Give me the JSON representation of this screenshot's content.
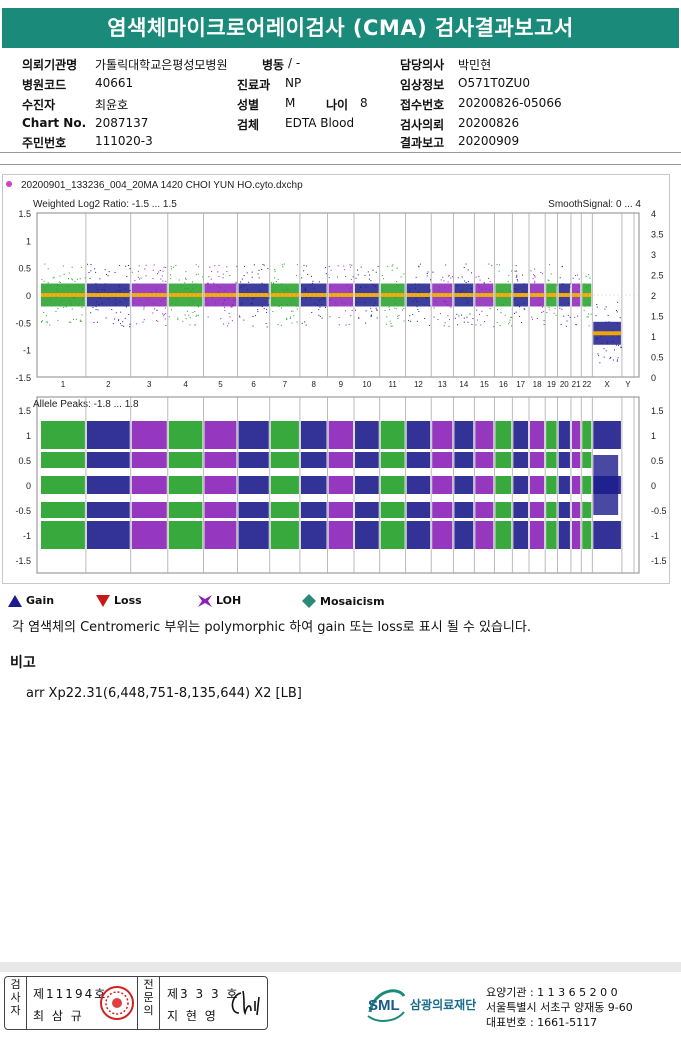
{
  "title": "염색체마이크로어레이검사 (CMA) 검사결과보고서",
  "patient": {
    "col1": [
      {
        "label": "의뢰기관명",
        "value": "가톨릭대학교은평성모병원"
      },
      {
        "label": "병원코드",
        "value": "40661"
      },
      {
        "label": "수진자",
        "value": "최윤호"
      },
      {
        "label": "Chart No.",
        "value": "2087137"
      },
      {
        "label": "주민번호",
        "value": "111020-3"
      }
    ],
    "ward": {
      "label": "병동",
      "value": "/ -"
    },
    "dept": {
      "label": "진료과",
      "value": "NP"
    },
    "sex": {
      "label": "성별",
      "value": "M"
    },
    "age": {
      "label": "나이",
      "value": "8"
    },
    "specimen": {
      "label": "검체",
      "value": "EDTA Blood"
    },
    "col3": [
      {
        "label": "담당의사",
        "value": "박민현"
      },
      {
        "label": "임상정보",
        "value": "O571T0ZU0"
      },
      {
        "label": "접수번호",
        "value": "20200826-05066"
      },
      {
        "label": "검사의뢰",
        "value": "20200826"
      },
      {
        "label": "결과보고",
        "value": "20200909"
      }
    ]
  },
  "chart_data": [
    {
      "type": "scatter",
      "file_title": "20200901_133236_004_20MA 1420 CHOI YUN HO.cyto.dxchp",
      "title": "Weighted Log2 Ratio: -1.5 ... 1.5",
      "right_title": "SmoothSignal: 0 ... 4",
      "ylim": [
        -1.5,
        1.5
      ],
      "yticks": [
        "1.5",
        "1",
        "0.5",
        "0",
        "-0.5",
        "-1",
        "-1.5"
      ],
      "y2lim": [
        0,
        4
      ],
      "y2ticks": [
        "4",
        "3.5",
        "3",
        "2.5",
        "2",
        "1.5",
        "1",
        "0.5",
        "0"
      ],
      "categories": [
        "1",
        "2",
        "3",
        "4",
        "5",
        "6",
        "7",
        "8",
        "9",
        "10",
        "11",
        "12",
        "13",
        "14",
        "15",
        "16",
        "17",
        "18",
        "19",
        "20",
        "21",
        "22",
        "X",
        "Y"
      ],
      "series_note_x_low": -0.7
    },
    {
      "type": "scatter",
      "title": "Allele Peaks: -1.8 ... 1.8",
      "ylim": [
        -1.8,
        1.8
      ],
      "yticks": [
        "1.5",
        "1",
        "0.5",
        "0",
        "-0.5",
        "-1",
        "-1.5"
      ],
      "peaks": [
        1,
        0.5,
        0,
        -0.5,
        -1
      ]
    }
  ],
  "chromosome_widths": [
    248,
    242,
    198,
    190,
    181,
    171,
    159,
    145,
    138,
    134,
    135,
    133,
    114,
    107,
    102,
    90,
    83,
    80,
    59,
    64,
    47,
    51,
    156,
    57
  ],
  "colors": {
    "green": "#22a028",
    "navy": "#1c1c8c",
    "purple": "#8a22b8",
    "orange": "#f0a800",
    "teal": "#1a8a7a"
  },
  "legend": [
    {
      "label": "Gain",
      "color": "#1c1c8c",
      "shape": "triangle-up"
    },
    {
      "label": "Loss",
      "color": "#c81818",
      "shape": "triangle-down"
    },
    {
      "label": "LOH",
      "color": "#8a22b8",
      "shape": "x-star"
    },
    {
      "label": "Mosaicism",
      "color": "#2a8a7a",
      "shape": "diamond"
    }
  ],
  "note": "각 염색체의 Centromeric 부위는 polymorphic 하여 gain 또는 loss로 표시 될 수 있습니다.",
  "remarks_label": "비고",
  "result": "arr Xp22.31(6,448,751-8,135,644) X2 [LB]",
  "footer": {
    "tester_label": "검사자",
    "tester_no": "제11194호",
    "tester_name": "최 삼 규",
    "specialist_label": "전문의",
    "specialist_no": "제3 3 3 호",
    "specialist_name": "지 현 영",
    "logo": "SML",
    "org": "삼광의료재단",
    "org_code": "요양기관 : 1 1 3 6 5 2 0 0",
    "address": "서울특별시 서초구 양재동 9-60",
    "phone": "대표번호 : 1661-5117"
  }
}
